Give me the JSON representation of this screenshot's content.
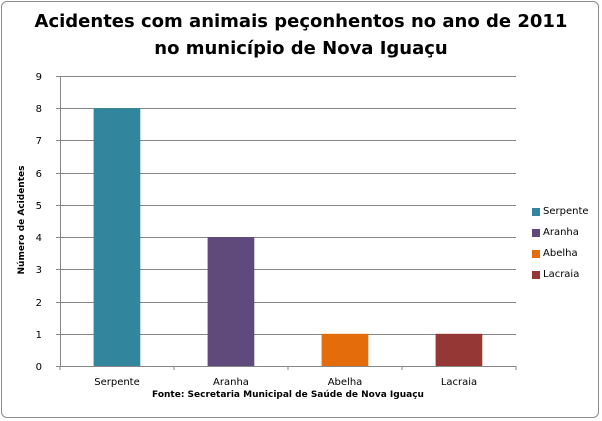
{
  "chart_data": {
    "type": "bar",
    "title": "Acidentes com animais peçonhentos no ano de 2011 no município de Nova Iguaçu",
    "title_lines": [
      "Acidentes com animais peçonhentos no ano de 2011",
      "no município de Nova Iguaçu"
    ],
    "xlabel": "Fonte: Secretaria Municipal  de Saúde de Nova Iguaçu",
    "ylabel": "Número de Acidentes",
    "categories": [
      "Serpente",
      "Aranha",
      "Abelha",
      "Lacraia"
    ],
    "values": [
      8,
      4,
      1,
      1
    ],
    "colors": [
      "#31859c",
      "#604a7b",
      "#e46c0a",
      "#953735"
    ],
    "ylim": [
      0,
      9
    ],
    "yticks": [
      0,
      1,
      2,
      3,
      4,
      5,
      6,
      7,
      8,
      9
    ],
    "grid": true,
    "legend": {
      "position": "right",
      "entries": [
        "Serpente",
        "Aranha",
        "Abelha",
        "Lacraia"
      ]
    }
  }
}
